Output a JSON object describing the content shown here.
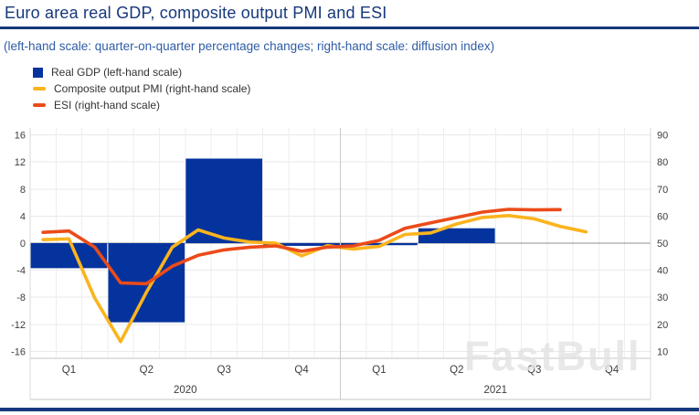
{
  "page": {
    "title": "Euro area real GDP, composite output PMI and ESI",
    "subtitle": "(left-hand scale: quarter-on-quarter percentage changes; right-hand scale: diffusion index)",
    "watermark": "FastBull"
  },
  "legend": {
    "position": "top-left",
    "items": [
      {
        "label": "Real GDP (left-hand scale)",
        "marker": "square",
        "color": "#05339e"
      },
      {
        "label": "Composite output PMI (right-hand scale)",
        "marker": "line",
        "color": "#fab41e"
      },
      {
        "label": "ESI (right-hand scale)",
        "marker": "line",
        "color": "#eb4b19"
      }
    ]
  },
  "chart_data": {
    "type": "combo",
    "title": "Euro area real GDP, composite output PMI and ESI",
    "left_axis": {
      "label": "quarter-on-quarter percentage changes",
      "ticks": [
        16,
        12,
        8,
        4,
        0,
        -4,
        -8,
        -12,
        -16
      ],
      "range": [
        -16,
        16
      ]
    },
    "right_axis": {
      "label": "diffusion index",
      "ticks": [
        90,
        80,
        70,
        60,
        50,
        40,
        30,
        20,
        10
      ],
      "range": [
        10,
        90
      ]
    },
    "x_axis": {
      "years": [
        {
          "label": "2020",
          "quarters": [
            "Q1",
            "Q2",
            "Q3",
            "Q4"
          ]
        },
        {
          "label": "2021",
          "quarters": [
            "Q1",
            "Q2",
            "Q3",
            "Q4"
          ]
        }
      ],
      "months_per_quarter": 3
    },
    "grid": {
      "horizontal": true,
      "vertical_monthly": true,
      "zero_line": true
    },
    "series": [
      {
        "name": "Real GDP (left-hand scale)",
        "type": "bar",
        "axis": "left",
        "color": "#05339e",
        "quarters": [
          "2020 Q1",
          "2020 Q2",
          "2020 Q3",
          "2020 Q4",
          "2021 Q1",
          "2021 Q2"
        ],
        "values": [
          -3.7,
          -11.7,
          12.5,
          -0.4,
          -0.3,
          2.2
        ]
      },
      {
        "name": "Composite output PMI (right-hand scale)",
        "type": "line",
        "axis": "right",
        "color": "#fab41e",
        "start_month": "2020-01",
        "values": [
          51.3,
          51.6,
          29.7,
          13.6,
          31.9,
          48.5,
          54.9,
          51.9,
          50.4,
          50.0,
          45.3,
          49.1,
          47.8,
          48.8,
          53.2,
          53.8,
          57.1,
          59.5,
          60.2,
          59.0,
          56.2,
          54.2
        ]
      },
      {
        "name": "ESI (right-hand scale)",
        "type": "line",
        "axis": "right",
        "color": "#eb4b19",
        "start_month": "2020-01",
        "values": [
          54.0,
          54.5,
          48.5,
          35.3,
          35.0,
          41.5,
          45.5,
          47.5,
          48.5,
          49.0,
          47.0,
          48.5,
          49.0,
          51.0,
          55.5,
          57.5,
          59.5,
          61.5,
          62.5,
          62.3,
          62.4
        ]
      }
    ]
  }
}
